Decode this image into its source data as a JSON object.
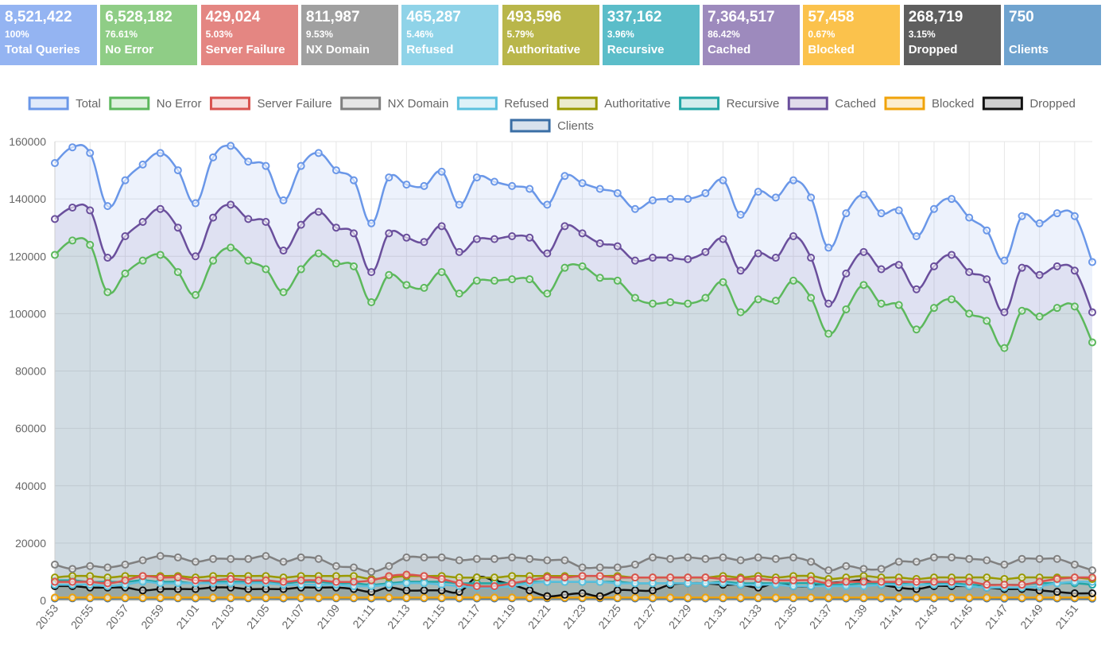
{
  "stats": [
    {
      "value": "8,521,422",
      "percent": "100%",
      "label": "Total Queries",
      "color": "#94b4f2"
    },
    {
      "value": "6,528,182",
      "percent": "76.61%",
      "label": "No Error",
      "color": "#8fcd86"
    },
    {
      "value": "429,024",
      "percent": "5.03%",
      "label": "Server Failure",
      "color": "#e48682"
    },
    {
      "value": "811,987",
      "percent": "9.53%",
      "label": "NX Domain",
      "color": "#a0a0a0"
    },
    {
      "value": "465,287",
      "percent": "5.46%",
      "label": "Refused",
      "color": "#8fd3e8"
    },
    {
      "value": "493,596",
      "percent": "5.79%",
      "label": "Authoritative",
      "color": "#b9b64a"
    },
    {
      "value": "337,162",
      "percent": "3.96%",
      "label": "Recursive",
      "color": "#5bbdc9"
    },
    {
      "value": "7,364,517",
      "percent": "86.42%",
      "label": "Cached",
      "color": "#9d8abd"
    },
    {
      "value": "57,458",
      "percent": "0.67%",
      "label": "Blocked",
      "color": "#fbc24c"
    },
    {
      "value": "268,719",
      "percent": "3.15%",
      "label": "Dropped",
      "color": "#5e5e5e"
    },
    {
      "value": "750",
      "percent": "",
      "label": "Clients",
      "color": "#6fa3cf"
    }
  ],
  "chart_data": {
    "type": "line",
    "ylim": [
      0,
      160000
    ],
    "yticks": [
      "0",
      "20000",
      "40000",
      "60000",
      "80000",
      "100000",
      "120000",
      "140000",
      "160000"
    ],
    "xticks": [
      "20:53",
      "20:55",
      "20:57",
      "20:59",
      "21:01",
      "21:03",
      "21:05",
      "21:07",
      "21:09",
      "21:11",
      "21:13",
      "21:15",
      "21:17",
      "21:19",
      "21:21",
      "21:23",
      "21:25",
      "21:27",
      "21:29",
      "21:31",
      "21:33",
      "21:35",
      "21:37",
      "21:39",
      "21:41",
      "21:43",
      "21:45",
      "21:47",
      "21:49",
      "21:51"
    ],
    "series": [
      {
        "name": "Total",
        "color": "#6a97e8",
        "fill": "rgba(106,151,232,0.12)",
        "values": [
          152500,
          158000,
          156000,
          137500,
          146500,
          152000,
          156000,
          150000,
          138500,
          154500,
          158500,
          153000,
          151500,
          139500,
          151500,
          156000,
          150000,
          146500,
          131500,
          147500,
          145000,
          144500,
          149500,
          138000,
          147500,
          146000,
          144500,
          143500,
          138000,
          148000,
          145500,
          143500,
          142000,
          136500,
          139500,
          140000,
          140000,
          142000,
          146500,
          134500,
          142500,
          140500,
          146500,
          140500,
          123000,
          135000,
          141500,
          135000,
          136000,
          127000,
          136500,
          140000,
          133500,
          129000,
          118500,
          134000,
          131500,
          135000,
          134000,
          118000
        ]
      },
      {
        "name": "No Error",
        "color": "#5cb85c",
        "fill": "rgba(92,184,92,0.10)",
        "values": [
          120500,
          125500,
          124000,
          107500,
          114000,
          118500,
          120500,
          114500,
          106500,
          118500,
          123000,
          118500,
          115500,
          107500,
          115500,
          121000,
          117500,
          116500,
          104000,
          113500,
          110000,
          109000,
          114500,
          107000,
          111500,
          111500,
          112000,
          112000,
          107000,
          116000,
          116500,
          112500,
          111500,
          105500,
          103500,
          104000,
          103500,
          105500,
          111000,
          100500,
          105000,
          104500,
          111500,
          105500,
          93000,
          101500,
          110000,
          103500,
          103000,
          94500,
          102000,
          105000,
          100000,
          97500,
          88000,
          101000,
          99000,
          102000,
          102500,
          90000
        ]
      },
      {
        "name": "Server Failure",
        "color": "#d9534f",
        "fill": "rgba(217,83,79,0.10)",
        "values": [
          6500,
          6500,
          6500,
          6000,
          7000,
          8500,
          8000,
          8000,
          7000,
          7000,
          7500,
          7000,
          7000,
          6500,
          7000,
          7000,
          6500,
          6500,
          7000,
          8500,
          9000,
          8500,
          7500,
          6000,
          5000,
          5000,
          6000,
          7000,
          8000,
          8000,
          8500,
          8500,
          8000,
          8000,
          8000,
          8000,
          8000,
          8000,
          7500,
          7500,
          7500,
          7000,
          7000,
          7000,
          6000,
          6500,
          6500,
          6500,
          6500,
          6500,
          6500,
          6500,
          6500,
          5500,
          5500,
          5500,
          6500,
          7500,
          8000,
          8000
        ]
      },
      {
        "name": "NX Domain",
        "color": "#808080",
        "fill": "rgba(128,128,128,0.10)",
        "values": [
          12500,
          11000,
          12000,
          11500,
          12500,
          14000,
          15500,
          15000,
          13500,
          14500,
          14500,
          14500,
          15500,
          13500,
          15000,
          14500,
          12000,
          11500,
          10000,
          12000,
          15000,
          15000,
          15000,
          14000,
          14500,
          14500,
          15000,
          14500,
          14000,
          14000,
          11500,
          11500,
          11500,
          12500,
          15000,
          14500,
          15000,
          14500,
          15000,
          14000,
          15000,
          14500,
          15000,
          13500,
          10500,
          12000,
          11000,
          11000,
          13500,
          13500,
          15000,
          15000,
          14500,
          14000,
          12500,
          14500,
          14500,
          14500,
          12500,
          10500
        ]
      },
      {
        "name": "Refused",
        "color": "#5bc0de",
        "fill": "rgba(91,192,222,0.10)",
        "values": [
          5500,
          5500,
          5500,
          5000,
          5500,
          6500,
          6000,
          6000,
          6000,
          6000,
          6000,
          6000,
          6000,
          5500,
          5500,
          5500,
          5500,
          5000,
          5000,
          5500,
          6000,
          6000,
          5500,
          5000,
          4500,
          4500,
          5000,
          6000,
          6500,
          6500,
          6500,
          6500,
          6000,
          6000,
          6000,
          6000,
          6000,
          6000,
          6000,
          5500,
          5500,
          5500,
          5000,
          5000,
          5000,
          5000,
          5000,
          5500,
          5500,
          5500,
          5500,
          5500,
          5000,
          4500,
          4500,
          4500,
          5000,
          6000,
          6500,
          6500
        ]
      },
      {
        "name": "Authoritative",
        "color": "#999900",
        "fill": "rgba(153,153,0,0.10)",
        "values": [
          8000,
          8500,
          8500,
          8000,
          8500,
          8500,
          8500,
          8500,
          8000,
          8500,
          8500,
          8500,
          8500,
          8000,
          8500,
          8500,
          8500,
          8500,
          7500,
          8000,
          8500,
          8500,
          8500,
          8000,
          8000,
          8000,
          8500,
          8500,
          8500,
          8500,
          8500,
          8500,
          8500,
          8000,
          8000,
          8000,
          8000,
          8000,
          8500,
          8000,
          8500,
          8000,
          8500,
          8500,
          7500,
          8000,
          8500,
          8000,
          8000,
          7500,
          8000,
          8000,
          8000,
          8000,
          7500,
          8000,
          8000,
          8000,
          8000,
          7500
        ]
      },
      {
        "name": "Recursive",
        "color": "#23a6a6",
        "fill": "rgba(35,166,166,0.10)",
        "values": [
          7000,
          7000,
          6500,
          6500,
          6500,
          7000,
          6500,
          6500,
          6000,
          6500,
          6500,
          6500,
          6500,
          6000,
          6500,
          6500,
          6000,
          6000,
          5500,
          6000,
          6500,
          6500,
          6500,
          6000,
          6000,
          6000,
          6000,
          6500,
          6500,
          6500,
          6500,
          6500,
          6500,
          6000,
          6000,
          6000,
          6000,
          6000,
          6500,
          6000,
          6000,
          6000,
          6000,
          6000,
          5500,
          5500,
          6000,
          6000,
          6000,
          5500,
          6000,
          6000,
          5500,
          5500,
          5500,
          5500,
          6000,
          6000,
          6000,
          5500
        ]
      },
      {
        "name": "Cached",
        "color": "#6a4f9c",
        "fill": "rgba(106,79,156,0.10)",
        "values": [
          133000,
          137000,
          136000,
          119500,
          127000,
          132000,
          136500,
          130000,
          120000,
          133500,
          138000,
          133000,
          132000,
          122000,
          131000,
          135500,
          130000,
          128000,
          114500,
          128000,
          126500,
          125000,
          130500,
          121500,
          126000,
          126000,
          127000,
          126500,
          121000,
          130500,
          128000,
          124500,
          123500,
          118500,
          119500,
          119500,
          119000,
          121500,
          126000,
          115000,
          121000,
          119500,
          127000,
          119500,
          103500,
          114000,
          121500,
          115500,
          117000,
          108500,
          116500,
          120500,
          114500,
          112000,
          100500,
          116000,
          113500,
          116500,
          115000,
          100500
        ]
      },
      {
        "name": "Dropped",
        "color": "#111111",
        "fill": "rgba(17,17,17,0.10)",
        "values": [
          5000,
          5000,
          4500,
          4500,
          4500,
          3500,
          4000,
          4000,
          4000,
          4500,
          4500,
          4000,
          4000,
          4000,
          4500,
          4500,
          4500,
          4000,
          3000,
          4500,
          3500,
          3500,
          3500,
          3000,
          8000,
          7000,
          5500,
          3500,
          1500,
          2000,
          2500,
          1500,
          3500,
          3500,
          3500,
          5500,
          6000,
          6000,
          5500,
          5500,
          4500,
          6000,
          5000,
          5000,
          6000,
          6500,
          7000,
          5500,
          4500,
          4000,
          5000,
          5000,
          5000,
          4500,
          4000,
          4000,
          3500,
          3000,
          2500,
          2500
        ]
      },
      {
        "name": "Blocked",
        "color": "#f0a30a",
        "fill": "rgba(240,163,10,0.10)",
        "values": [
          1000,
          1000,
          1000,
          1000,
          1000,
          1000,
          1000,
          1000,
          1000,
          1000,
          1000,
          1000,
          1000,
          1000,
          1000,
          1000,
          1000,
          1000,
          1000,
          1000,
          1000,
          1000,
          1000,
          1000,
          1000,
          1000,
          1000,
          1000,
          1000,
          1000,
          1000,
          1000,
          1000,
          1000,
          1000,
          1000,
          1000,
          1000,
          1000,
          1000,
          1000,
          1000,
          1000,
          1000,
          1000,
          1000,
          1000,
          1000,
          1000,
          1000,
          1000,
          1000,
          1000,
          1000,
          1000,
          1000,
          1000,
          1000,
          1000,
          1000
        ]
      },
      {
        "name": "Clients",
        "color": "#3a6ea5",
        "fill": "rgba(58,110,165,0.10)",
        "values": [
          700,
          750,
          750,
          700,
          750,
          750,
          750,
          750,
          700,
          750,
          750,
          750,
          750,
          700,
          750,
          750,
          750,
          750,
          700,
          750,
          750,
          750,
          750,
          700,
          700,
          700,
          750,
          750,
          750,
          750,
          750,
          750,
          750,
          700,
          700,
          700,
          700,
          700,
          750,
          700,
          750,
          700,
          750,
          750,
          700,
          700,
          750,
          700,
          700,
          700,
          700,
          750,
          700,
          700,
          650,
          700,
          700,
          700,
          700,
          650
        ]
      }
    ],
    "legend_order": [
      "Total",
      "No Error",
      "Server Failure",
      "NX Domain",
      "Refused",
      "Authoritative",
      "Recursive",
      "Cached",
      "Blocked",
      "Dropped",
      "Clients"
    ],
    "legend_position": "top",
    "grid": true
  }
}
